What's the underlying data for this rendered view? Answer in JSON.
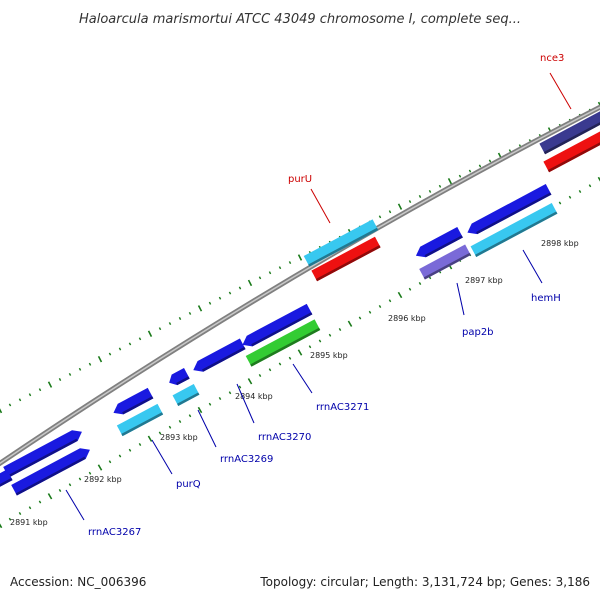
{
  "title": "Haloarcula marismortui ATCC 43049 chromosome I, complete seq...",
  "footer": {
    "accession": "Accession: NC_006396",
    "topology": "Topology: circular; Length: 3,131,724 bp; Genes: 3,186"
  },
  "colors": {
    "background": "#ffffff",
    "backbone": "#808080",
    "tick": "#1a7a1a",
    "gene_blue": "#1a1ae0",
    "gene_cyan": "#38c8f0",
    "gene_red": "#ee1111",
    "gene_green": "#33cc33",
    "gene_slate": "#3a3a90",
    "gene_lavender": "#7a6ad8",
    "label_blue": "#0000aa",
    "label_red": "#cc0000"
  },
  "tick_labels": [
    "2891 kbp",
    "2892 kbp",
    "2893 kbp",
    "2894 kbp",
    "2895 kbp",
    "2896 kbp",
    "2897 kbp",
    "2898 kbp"
  ],
  "gene_labels": {
    "rrnAC3267": "rrnAC3267",
    "purQ": "purQ",
    "rrnAC3269": "rrnAC3269",
    "rrnAC3270": "rrnAC3270",
    "rrnAC3271": "rrnAC3271",
    "purU": "purU",
    "pap2b": "pap2b",
    "hemH": "hemH",
    "nce3": "nce3"
  }
}
